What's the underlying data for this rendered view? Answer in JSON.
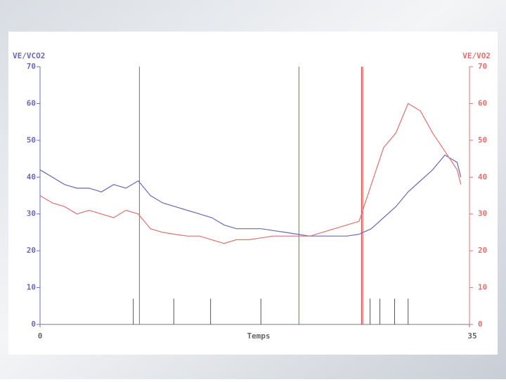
{
  "chart_data": {
    "type": "line",
    "y_label": "VE/VCO2",
    "y2_label": "VE/VO2",
    "x_label": "Temps",
    "x": [
      0,
      1,
      2,
      3,
      4,
      5,
      6,
      7,
      8,
      9,
      10,
      11,
      12,
      13,
      14,
      15,
      16,
      17,
      18,
      19,
      20,
      21,
      22,
      23,
      24,
      25,
      26,
      27,
      28,
      29,
      30,
      31,
      32,
      33,
      34,
      34.3
    ],
    "series": [
      {
        "name": "VE/VCO2",
        "color": "#6a6ab8",
        "values": [
          42,
          40,
          38,
          37,
          37,
          36,
          38,
          37,
          39,
          35,
          33,
          32,
          31,
          30,
          29,
          27,
          26,
          26,
          26,
          25.5,
          25,
          24.5,
          24,
          24,
          24,
          24,
          24.5,
          26,
          29,
          32,
          36,
          39,
          42,
          46,
          44,
          40
        ]
      },
      {
        "name": "VE/VO2",
        "color": "#e07272",
        "axis": "y2",
        "values": [
          35,
          33,
          32,
          30,
          31,
          30,
          29,
          31,
          30,
          26,
          25,
          24.5,
          24,
          24,
          23,
          22,
          23,
          23,
          23.5,
          24,
          24,
          24,
          24,
          25,
          26,
          27,
          28,
          38,
          48,
          52,
          60,
          58,
          52,
          47,
          42,
          38
        ]
      }
    ],
    "xlim": [
      0,
      35
    ],
    "xticks": [
      0,
      35
    ],
    "ylim": [
      0,
      70
    ],
    "yticks": [
      0,
      10,
      20,
      30,
      40,
      50,
      60,
      70
    ],
    "y2lim": [
      0,
      70
    ],
    "y2ticks": [
      0,
      10,
      20,
      30,
      40,
      50,
      60,
      70
    ],
    "markers": [
      {
        "x": 8.1,
        "color": "#707070"
      },
      {
        "x": 21.1,
        "color": "#3a9a3a"
      },
      {
        "x": 26.2,
        "color": "#c04040"
      },
      {
        "x": 26.3,
        "color": "#c04040"
      }
    ],
    "events": [
      7.6,
      10.9,
      13.9,
      18,
      26.9,
      27.7,
      28.9,
      30
    ],
    "event_height": 7,
    "event_color": "#555555"
  }
}
